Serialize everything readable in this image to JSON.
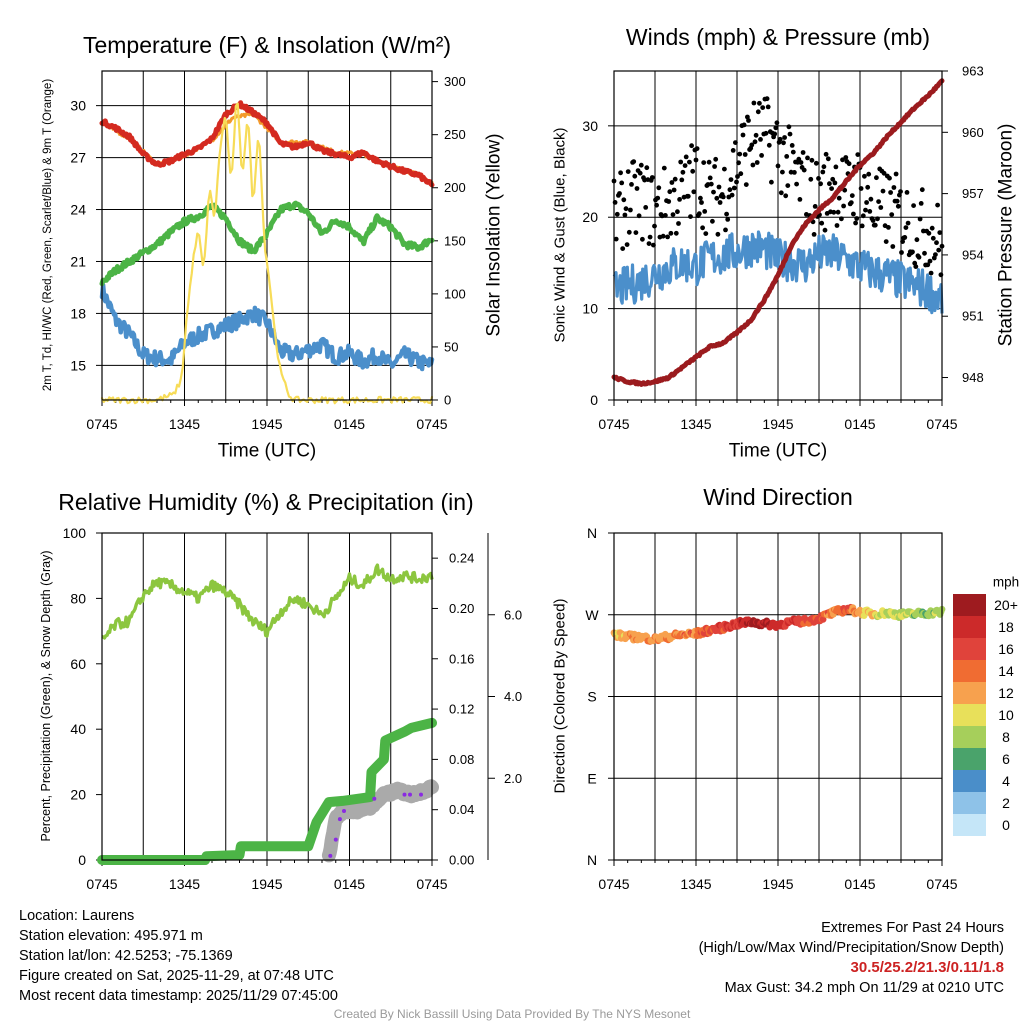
{
  "chart_data": [
    {
      "type": "line",
      "title": "Temperature (F) & Insolation (W/m²)",
      "xlabel": "Time (UTC)",
      "ylabel": "2m T, Td, HI/WC (Red, Green, Scarlet/Blue) & 9m T (Orange)",
      "ylabel_right": "Solar Insolation (Yellow)",
      "x_ticks": [
        "0745",
        "1345",
        "1945",
        "0145",
        "0745"
      ],
      "x_range_hours": [
        0,
        24
      ],
      "ylim": [
        13,
        32
      ],
      "y_ticks": [
        15,
        18,
        21,
        24,
        27,
        30
      ],
      "ylim_right": [
        0,
        310
      ],
      "y_ticks_right": [
        0,
        50,
        100,
        150,
        200,
        250,
        300
      ],
      "series": [
        {
          "name": "2m Temperature",
          "color": "#d42a20",
          "axis": "left",
          "x": [
            0,
            1,
            2,
            3,
            4,
            5,
            6,
            7,
            8,
            9,
            10,
            11,
            12,
            13,
            14,
            15,
            16,
            17,
            18,
            19,
            20,
            21,
            22,
            23,
            24
          ],
          "values": [
            29.1,
            28.7,
            28.2,
            27.2,
            26.6,
            26.8,
            27.2,
            27.5,
            28.1,
            29.5,
            30.1,
            29.6,
            29.0,
            27.8,
            27.6,
            27.9,
            27.4,
            27.2,
            27.0,
            27.3,
            26.8,
            26.5,
            26.2,
            26.0,
            25.4
          ]
        },
        {
          "name": "9m Temperature",
          "color": "#f39a2c",
          "axis": "left",
          "x": [
            0,
            2,
            4,
            6,
            8,
            9.5,
            11,
            13,
            15,
            17,
            19,
            21,
            23,
            24
          ],
          "values": [
            29.0,
            28.1,
            26.6,
            27.1,
            28.0,
            29.3,
            29.5,
            27.9,
            27.9,
            27.3,
            27.2,
            26.5,
            26.0,
            25.5
          ]
        },
        {
          "name": "2m Dew Point",
          "color": "#4cb446",
          "axis": "left",
          "x": [
            0,
            1,
            2,
            3,
            4,
            5,
            6,
            7,
            8,
            9,
            10,
            11,
            12,
            13,
            14,
            15,
            16,
            17,
            18,
            19,
            20,
            21,
            22,
            23,
            24
          ],
          "values": [
            19.8,
            20.5,
            21.0,
            21.5,
            22.0,
            22.7,
            23.3,
            23.6,
            24.2,
            23.5,
            22.2,
            21.6,
            22.6,
            24.0,
            24.3,
            23.8,
            22.6,
            23.4,
            23.0,
            22.1,
            23.5,
            23.0,
            22.0,
            21.8,
            22.3
          ]
        },
        {
          "name": "Wind Chill",
          "color": "#4b8fcb",
          "axis": "left",
          "x": [
            0,
            1,
            2,
            3,
            4,
            5,
            6,
            7,
            8,
            9,
            10,
            11,
            12,
            13,
            14,
            15,
            16,
            17,
            18,
            19,
            20,
            21,
            22,
            23,
            24
          ],
          "values": [
            19.4,
            17.6,
            16.8,
            15.6,
            15.4,
            15.3,
            16.3,
            16.7,
            17.0,
            17.3,
            17.6,
            18.0,
            17.5,
            15.8,
            15.6,
            15.9,
            16.2,
            15.5,
            15.7,
            15.2,
            15.6,
            15.0,
            15.6,
            15.2,
            15.0
          ]
        },
        {
          "name": "Solar Insolation",
          "color": "#f7dc58",
          "axis": "right",
          "x": [
            0,
            4,
            5.2,
            5.8,
            6.1,
            6.6,
            7.0,
            7.4,
            7.8,
            8.2,
            8.6,
            9.0,
            9.4,
            9.8,
            10.2,
            10.6,
            11.0,
            11.4,
            11.8,
            12.2,
            12.6,
            13.0,
            13.6,
            14.0,
            24
          ],
          "values": [
            0,
            0,
            5,
            20,
            70,
            130,
            160,
            120,
            200,
            170,
            240,
            270,
            200,
            290,
            210,
            270,
            180,
            260,
            150,
            110,
            60,
            25,
            5,
            0,
            0
          ]
        }
      ]
    },
    {
      "type": "line",
      "title": "Winds (mph) & Pressure (mb)",
      "xlabel": "Time (UTC)",
      "ylabel": "Sonic Wind & Gust (Blue, Black)",
      "ylabel_right": "Station Pressure (Maroon)",
      "x_ticks": [
        "0745",
        "1345",
        "1945",
        "0145",
        "0745"
      ],
      "x_range_hours": [
        0,
        24
      ],
      "ylim": [
        0,
        36
      ],
      "y_ticks": [
        0,
        10,
        20,
        30
      ],
      "ylim_right": [
        946.9,
        963.0
      ],
      "y_ticks_right": [
        948,
        951,
        954,
        957,
        960,
        963
      ],
      "series": [
        {
          "name": "Sonic Wind",
          "color": "#4b8fcb",
          "axis": "left",
          "x": [
            0,
            1,
            2,
            3,
            4,
            5,
            6,
            7,
            8,
            9,
            10,
            11,
            12,
            13,
            14,
            15,
            16,
            17,
            18,
            19,
            20,
            21,
            22,
            23,
            24
          ],
          "values": [
            12.0,
            12.5,
            13.0,
            13.8,
            14.5,
            15.0,
            14.6,
            15.5,
            15.8,
            16.2,
            16.8,
            16.5,
            15.4,
            15.2,
            14.8,
            15.9,
            16.0,
            15.3,
            14.6,
            14.0,
            13.6,
            13.0,
            12.5,
            12.0,
            11.0
          ]
        },
        {
          "name": "Gust",
          "color": "#000000",
          "axis": "left",
          "marker": "dot",
          "x": [
            0,
            1,
            2,
            3,
            4,
            5,
            6,
            7,
            8,
            9,
            10,
            11,
            12,
            13,
            14,
            15,
            16,
            17,
            18,
            19,
            20,
            21,
            22,
            23,
            24
          ],
          "values": [
            19.5,
            21.5,
            22.0,
            20.5,
            21.5,
            22.5,
            24.5,
            22.0,
            22.5,
            26.0,
            28.5,
            29.0,
            27.5,
            25.0,
            23.0,
            22.0,
            24.0,
            22.5,
            23.5,
            21.0,
            21.0,
            20.0,
            19.0,
            18.5,
            17.0
          ]
        },
        {
          "name": "Station Pressure",
          "color": "#9b1b1e",
          "axis": "right",
          "x": [
            0,
            1,
            2,
            3,
            4,
            5,
            6,
            7,
            8,
            9,
            10,
            11,
            12,
            13,
            14,
            15,
            16,
            17,
            18,
            19,
            20,
            21,
            22,
            23,
            24
          ],
          "values": [
            948.0,
            947.8,
            947.7,
            947.8,
            948.0,
            948.5,
            949.0,
            949.5,
            949.7,
            950.2,
            950.8,
            951.8,
            953.0,
            954.5,
            955.5,
            956.2,
            956.8,
            957.6,
            958.4,
            959.0,
            959.8,
            960.5,
            961.2,
            961.8,
            962.5
          ]
        }
      ]
    },
    {
      "type": "line",
      "title": "Relative Humidity (%) & Precipitation (in)",
      "xlabel": "",
      "ylabel": "Percent, Precipitation (Green), & Snow Depth (Gray)",
      "x_ticks": [
        "0745",
        "1345",
        "1945",
        "0145",
        "0745"
      ],
      "x_range_hours": [
        0,
        24
      ],
      "ylim": [
        0,
        100
      ],
      "y_ticks": [
        0,
        20,
        40,
        60,
        80,
        100
      ],
      "ylim_precip": [
        0,
        0.26
      ],
      "y_ticks_precip": [
        "0.00",
        "0.04",
        "0.08",
        "0.12",
        "0.16",
        "0.20",
        "0.24"
      ],
      "ylim_snow": [
        0,
        8.0
      ],
      "y_ticks_snow": [
        "2.0",
        "4.0",
        "6.0"
      ],
      "series": [
        {
          "name": "Relative Humidity",
          "color": "#8cc63f",
          "axis": "left",
          "x": [
            0,
            1,
            2,
            3,
            4,
            5,
            6,
            7,
            8,
            9,
            10,
            11,
            12,
            13,
            14,
            15,
            16,
            17,
            18,
            19,
            20,
            21,
            22,
            23,
            24
          ],
          "values": [
            67,
            72,
            73,
            81,
            85,
            84,
            82,
            80,
            84,
            82,
            78,
            73,
            70,
            76,
            80,
            78,
            75,
            80,
            86,
            84,
            89,
            86,
            87,
            86,
            87
          ]
        },
        {
          "name": "Precipitation",
          "color": "#4cb446",
          "axis": "precip",
          "x": [
            0,
            7.5,
            7.6,
            10,
            10.1,
            15,
            15.6,
            16.5,
            17.5,
            19.5,
            19.6,
            20.5,
            20.6,
            22,
            22.5,
            24
          ],
          "values": [
            0,
            0,
            0.003,
            0.004,
            0.011,
            0.011,
            0.03,
            0.046,
            0.047,
            0.05,
            0.07,
            0.08,
            0.095,
            0.102,
            0.105,
            0.109
          ]
        },
        {
          "name": "Snow Depth",
          "color": "#aaaaaa",
          "axis": "snow",
          "x": [
            16.5,
            17.0,
            17.5,
            18.5,
            19.5,
            20.5,
            21.5,
            22.5,
            23.5,
            24
          ],
          "values": [
            0.1,
            1.0,
            1.2,
            1.2,
            1.3,
            1.6,
            1.7,
            1.6,
            1.7,
            1.8
          ]
        },
        {
          "name": "Snow (raw)",
          "color": "#8a2be2",
          "axis": "snow",
          "x": [
            16.6,
            17.0,
            17.3,
            17.6,
            19.8,
            22.0,
            22.4,
            23.2
          ],
          "values": [
            0.1,
            0.5,
            1.0,
            1.2,
            1.5,
            1.6,
            1.6,
            1.6
          ]
        }
      ]
    },
    {
      "type": "scatter",
      "title": "Wind Direction",
      "xlabel": "",
      "ylabel": "Direction (Colored By Speed)",
      "x_ticks": [
        "0745",
        "1345",
        "1945",
        "0145",
        "0745"
      ],
      "x_range_hours": [
        0,
        24
      ],
      "y_ticks": [
        "N",
        "E",
        "S",
        "W",
        "N"
      ],
      "ylim_degrees": [
        0,
        360
      ],
      "colorbar": {
        "unit": "mph",
        "labels": [
          "20+",
          "18",
          "16",
          "14",
          "12",
          "10",
          "8",
          "6",
          "4",
          "2",
          "0"
        ],
        "colors": [
          "#9e1b1f",
          "#cc2a2a",
          "#e0433b",
          "#f06c32",
          "#f7a14e",
          "#e8e05a",
          "#a6cf5b",
          "#4aa36b",
          "#4a8ec9",
          "#8ec2e8",
          "#c5e6f8"
        ]
      },
      "series": [
        {
          "name": "Direction",
          "speed_mph": "color",
          "x": [
            0,
            1,
            2,
            3,
            4,
            5,
            6,
            7,
            8,
            9,
            10,
            11,
            12,
            13,
            14,
            15,
            16,
            17,
            18,
            19,
            20,
            21,
            22,
            23,
            24
          ],
          "values": [
            248,
            246,
            245,
            243,
            246,
            248,
            249,
            253,
            256,
            260,
            262,
            260,
            259,
            262,
            263,
            266,
            272,
            276,
            273,
            271,
            272,
            270,
            271,
            272,
            273
          ],
          "speeds": [
            12,
            13,
            13,
            14,
            14,
            15,
            15,
            16,
            17,
            18,
            21,
            20,
            19,
            18,
            16,
            17,
            14,
            17,
            12,
            11,
            10,
            10,
            9,
            9,
            9
          ]
        }
      ]
    }
  ],
  "info": {
    "location": "Location: Laurens",
    "elevation": "Station elevation: 495.971 m",
    "latlon": "Station lat/lon: 42.5253; -75.1369",
    "created": "Figure created on Sat, 2025-11-29, at 07:48 UTC",
    "recent": "Most recent data timestamp: 2025/11/29 07:45:00"
  },
  "extremes": {
    "title": "Extremes For Past 24 Hours",
    "subtitle": "(High/Low/Max Wind/Precipitation/Snow Depth)",
    "values": "30.5/25.2/21.3/0.11/1.8",
    "gust": "Max Gust: 34.2 mph On 11/29 at 0210 UTC"
  },
  "credit": "Created By Nick Bassill Using Data Provided By The NYS Mesonet"
}
